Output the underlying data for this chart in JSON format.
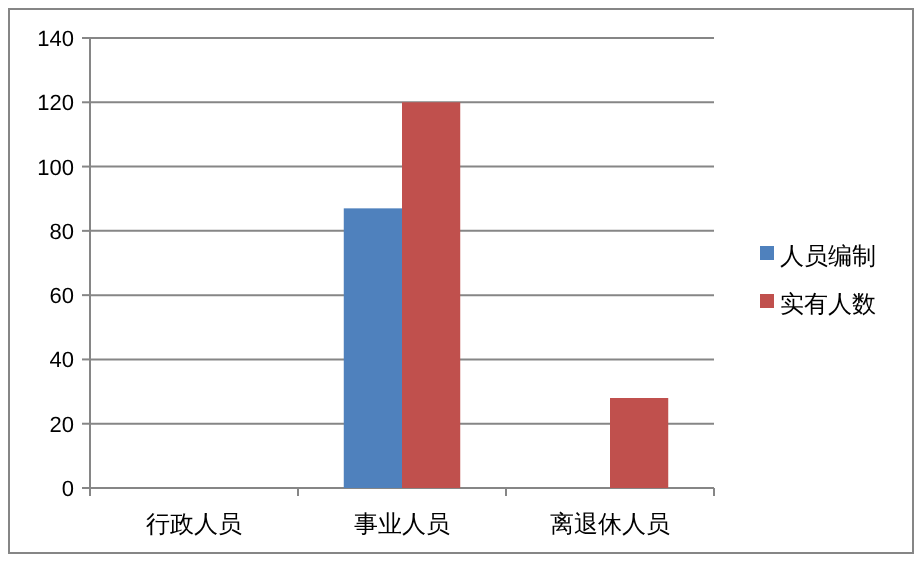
{
  "chart_data": {
    "type": "bar",
    "categories": [
      "行政人员",
      "事业人员",
      "离退休人员"
    ],
    "series": [
      {
        "name": "人员编制",
        "color": "#4f81bd",
        "values": [
          null,
          87,
          null
        ]
      },
      {
        "name": "实有人数",
        "color": "#c0504d",
        "values": [
          null,
          120,
          28
        ]
      }
    ],
    "ylim": [
      0,
      140
    ],
    "yticks": [
      0,
      20,
      40,
      60,
      80,
      100,
      120,
      140
    ],
    "grid": "y",
    "legend": "right"
  }
}
